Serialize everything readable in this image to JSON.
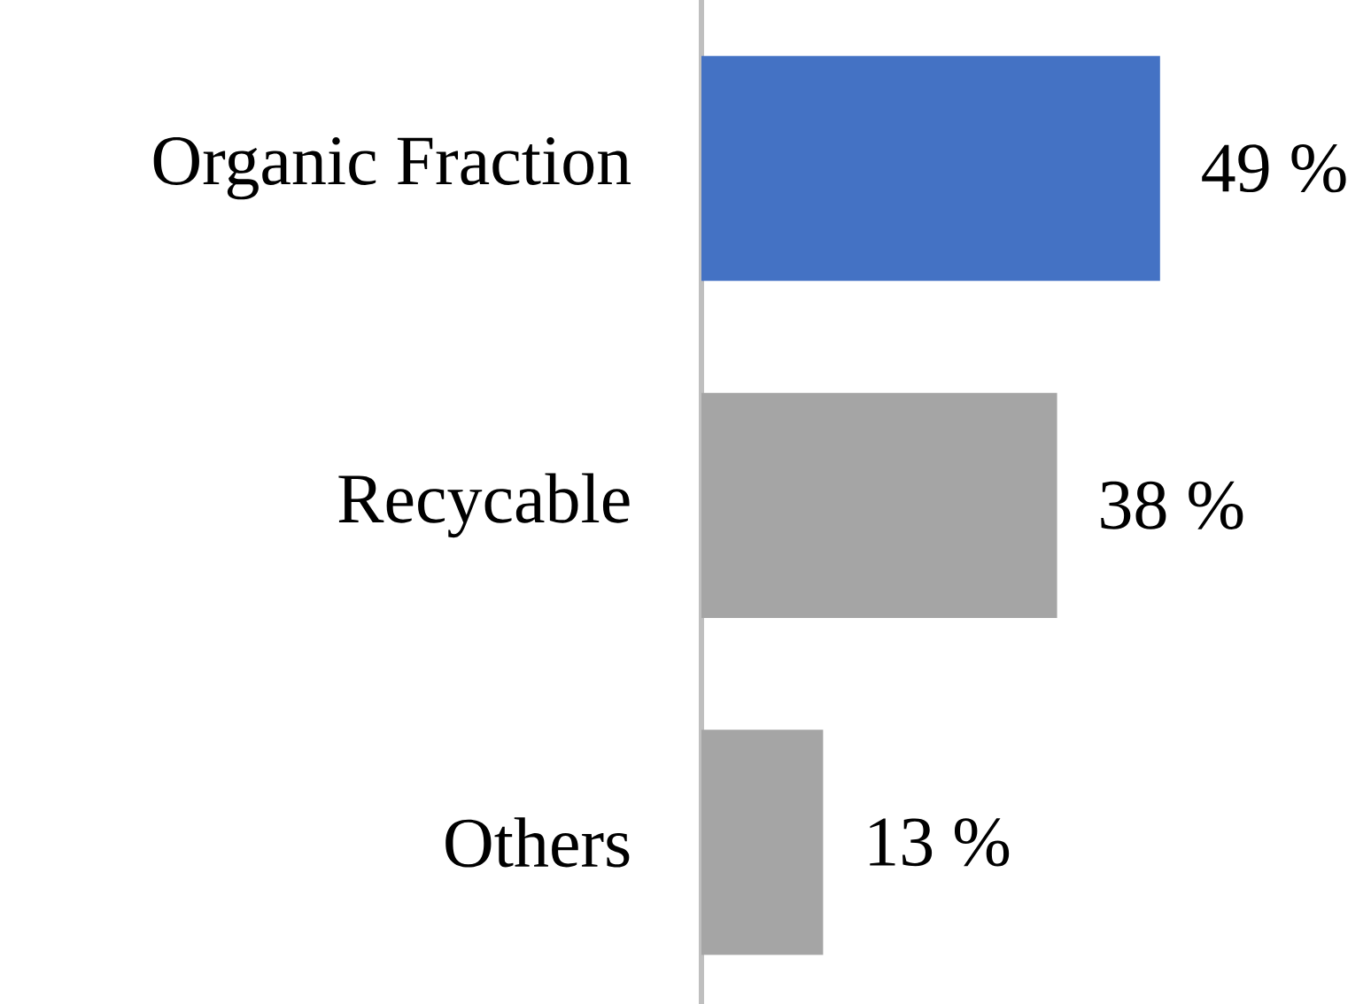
{
  "chart_data": {
    "type": "bar",
    "orientation": "horizontal",
    "categories": [
      "Organic Fraction",
      "Recycable",
      "Others"
    ],
    "values": [
      49,
      38,
      13
    ],
    "colors": [
      "#4472c4",
      "#a5a5a5",
      "#a5a5a5"
    ],
    "value_labels": [
      "49 %",
      "38 %",
      "13 %"
    ]
  }
}
